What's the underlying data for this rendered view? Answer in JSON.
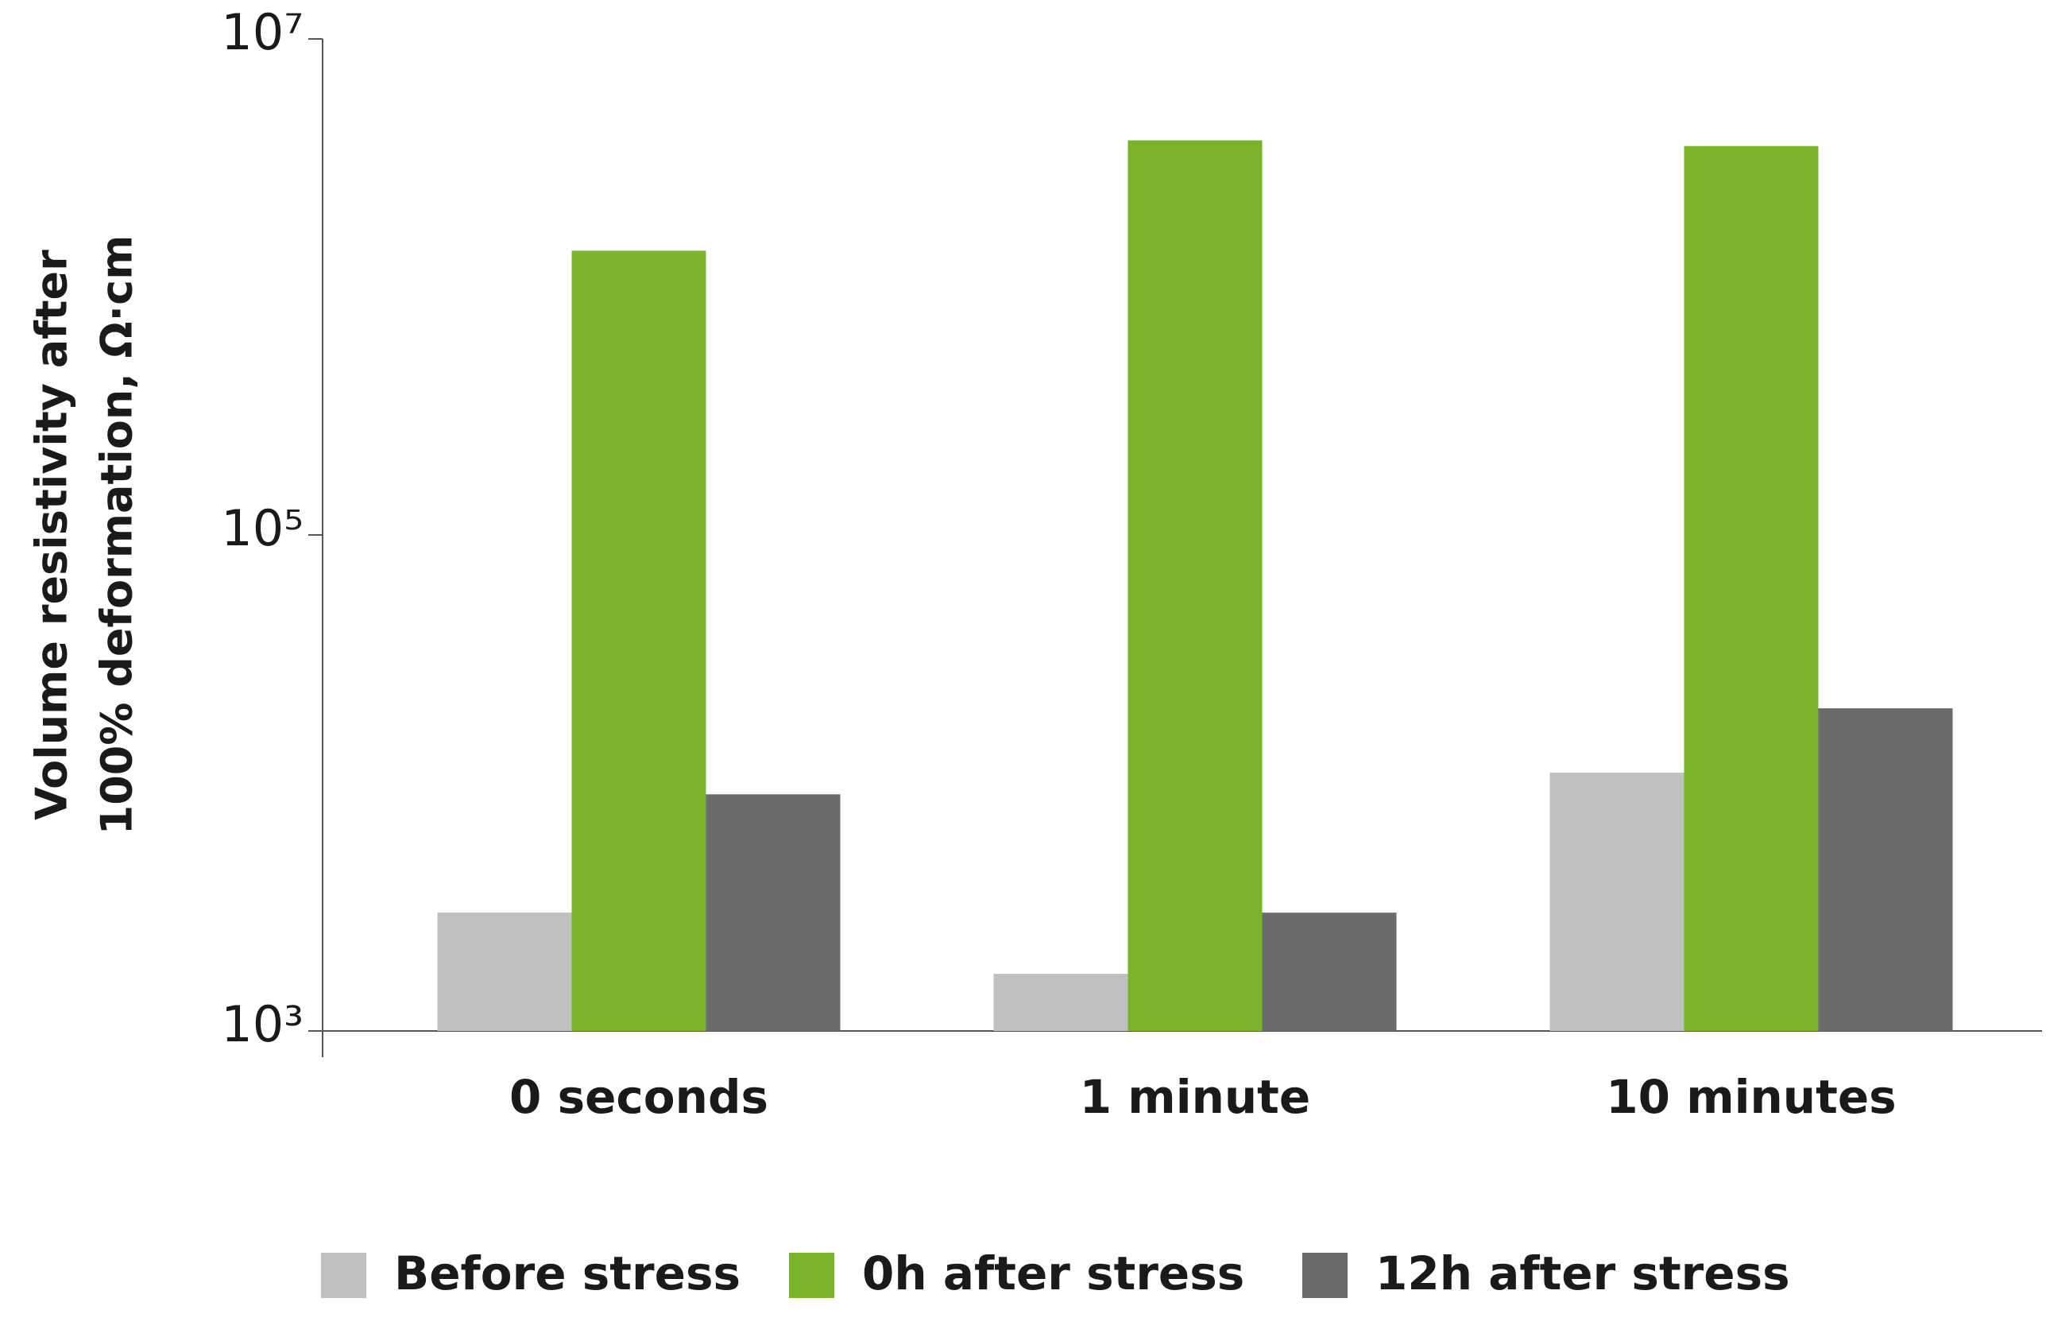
{
  "chart_data": {
    "type": "bar",
    "y_label": [
      "Volume resistivity after",
      "100% deformation, Ω·cm"
    ],
    "categories": [
      "0 seconds",
      "1 minute",
      "10 minutes"
    ],
    "series": [
      {
        "name": "Before stress",
        "color": "#c0c0c0",
        "values": [
          3000,
          1700,
          11000
        ]
      },
      {
        "name": "0h after stress",
        "color": "#7ab42b",
        "values": [
          1400000,
          3900000,
          3700000
        ]
      },
      {
        "name": "12h after stress",
        "color": "#6b6b6b",
        "values": [
          9000,
          3000,
          20000
        ]
      }
    ],
    "log_scale": true,
    "ylim": [
      1000,
      10000000
    ],
    "yticks": [
      {
        "value": 1000,
        "label": "10³"
      },
      {
        "value": 100000,
        "label": "10⁵"
      },
      {
        "value": 10000000,
        "label": "10⁷"
      }
    ],
    "legend": "bottom"
  }
}
